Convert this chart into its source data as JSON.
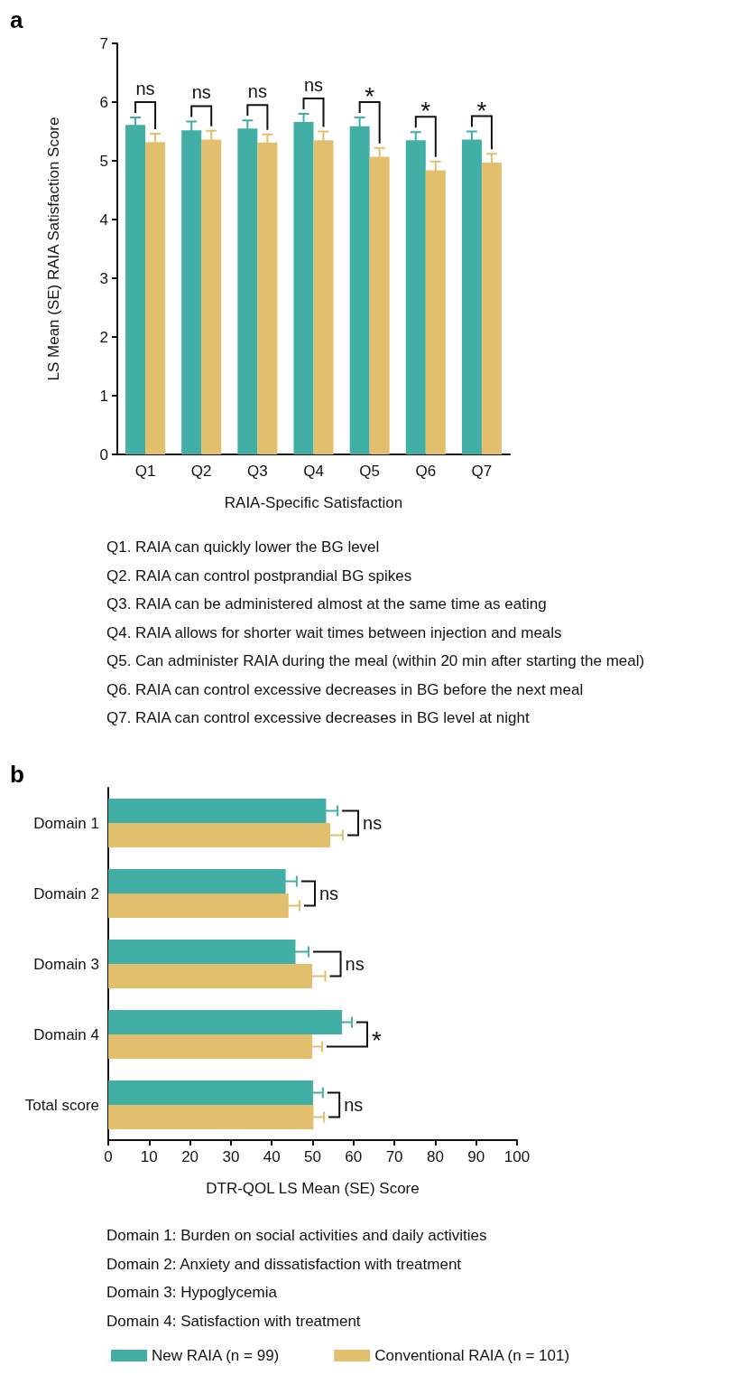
{
  "chart_data": [
    {
      "type": "bar",
      "title": "a",
      "xlabel": "RAIA-Specific Satisfaction",
      "ylabel": "LS Mean (SE) RAIA Satisfaction Score",
      "categories": [
        "Q1",
        "Q2",
        "Q3",
        "Q4",
        "Q5",
        "Q6",
        "Q7"
      ],
      "series": [
        {
          "color": "#41afa5",
          "values": [
            5.61,
            5.52,
            5.55,
            5.66,
            5.59,
            5.35,
            5.36
          ],
          "errors": [
            0.13,
            0.15,
            0.14,
            0.14,
            0.15,
            0.14,
            0.14
          ]
        },
        {
          "color": "#e1bf6c",
          "values": [
            5.32,
            5.36,
            5.31,
            5.35,
            5.07,
            4.84,
            4.97
          ],
          "errors": [
            0.14,
            0.15,
            0.14,
            0.15,
            0.15,
            0.15,
            0.15
          ]
        }
      ],
      "ylim": [
        0,
        7
      ],
      "yticks": [
        0,
        1,
        2,
        3,
        4,
        5,
        6,
        7
      ],
      "grid": false,
      "legend": false,
      "annotations": [
        "ns",
        "ns",
        "ns",
        "ns",
        "*",
        "*",
        "*",
        "Q1. RAIA can quickly lower the BG level",
        "Q2. RAIA can control postprandial BG spikes",
        "Q3. RAIA can be administered almost at the same time as eating",
        "Q4. RAIA allows for shorter wait times between injection and meals",
        "Q5. Can administer RAIA during the meal (within 20 min after starting the meal)",
        "Q6. RAIA can control excessive decreases in BG before the next meal",
        "Q7. RAIA can control excessive decreases in BG level at night"
      ]
    },
    {
      "type": "bar",
      "title": "b",
      "orientation": "horizontal",
      "xlabel": "DTR-QOL LS Mean (SE) Score",
      "categories": [
        "Domain 1",
        "Domain 2",
        "Domain 3",
        "Domain 4",
        "Total score"
      ],
      "series": [
        {
          "name": "New RAIA (n = 99)",
          "color": "#41afa5",
          "values": [
            53.3,
            43.4,
            45.8,
            57.2,
            50.1
          ],
          "errors": [
            2.8,
            2.7,
            3.2,
            2.4,
            2.4
          ]
        },
        {
          "name": "Conventional RAIA (n = 101)",
          "color": "#e1bf6c",
          "values": [
            54.3,
            44.1,
            49.9,
            49.9,
            50.2
          ],
          "errors": [
            3.1,
            2.7,
            3.2,
            2.4,
            2.6
          ]
        }
      ],
      "xlim": [
        0,
        100
      ],
      "xticks": [
        0,
        10,
        20,
        30,
        40,
        50,
        60,
        70,
        80,
        90,
        100
      ],
      "grid": false,
      "legend": "bottom",
      "annotations": [
        "ns",
        "ns",
        "ns",
        "*",
        "ns",
        "Domain 1: Burden on social activities and daily activities",
        "Domain 2: Anxiety and dissatisfaction with treatment",
        "Domain 3: Hypoglycemia",
        "Domain 4: Satisfaction with treatment"
      ]
    }
  ]
}
